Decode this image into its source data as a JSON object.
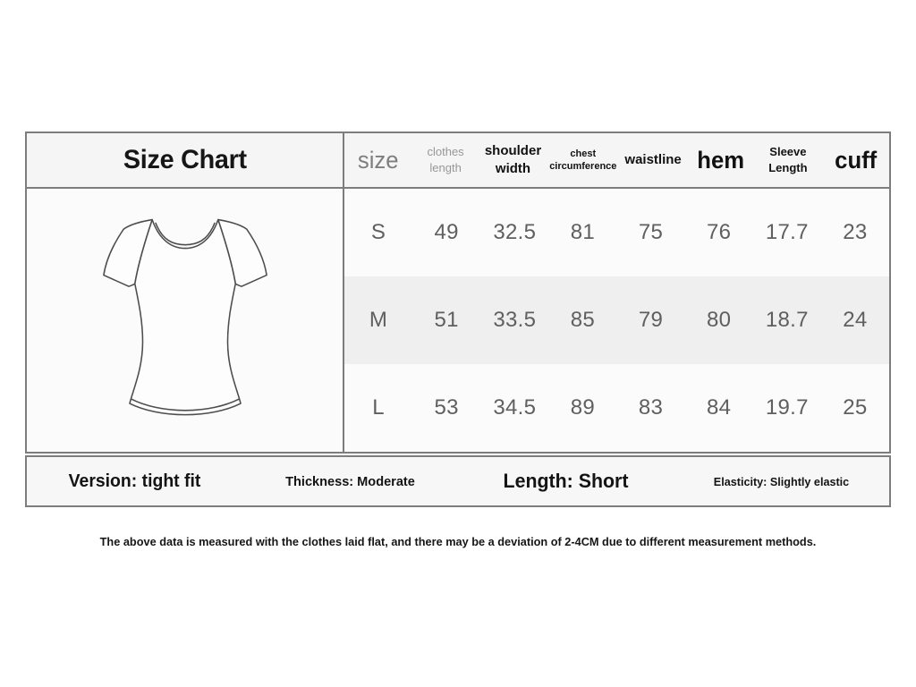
{
  "page": {
    "title": "Size Chart",
    "footnote": "The above data is measured with the clothes laid flat, and there may be a deviation of 2-4CM due to different measurement methods."
  },
  "size_table": {
    "columns": [
      {
        "label": "size"
      },
      {
        "label": "clothes length"
      },
      {
        "label": "shoulder width"
      },
      {
        "label": "chest circumference"
      },
      {
        "label": "waistline"
      },
      {
        "label": "hem"
      },
      {
        "label": "Sleeve Length"
      },
      {
        "label": "cuff"
      }
    ],
    "rows": [
      {
        "cells": [
          "S",
          "49",
          "32.5",
          "81",
          "75",
          "76",
          "17.7",
          "23"
        ]
      },
      {
        "cells": [
          "M",
          "51",
          "33.5",
          "85",
          "79",
          "80",
          "18.7",
          "24"
        ]
      },
      {
        "cells": [
          "L",
          "53",
          "34.5",
          "89",
          "83",
          "84",
          "19.7",
          "25"
        ]
      }
    ]
  },
  "attributes": [
    {
      "label": "Version: tight fit"
    },
    {
      "label": "Thickness: Moderate"
    },
    {
      "label": "Length: Short"
    },
    {
      "label": "Elasticity: Slightly elastic"
    }
  ],
  "illustration": {
    "name": "t-shirt line drawing, raglan short sleeves, fitted waist"
  },
  "colors": {
    "border": "#7d7d7d",
    "panel_bg": "#fbfbfb",
    "header_bg": "#f5f5f5",
    "alt_row_bg": "#efefef",
    "attr_bar_bg": "#f7f7f7",
    "data_text": "#5f5f5f"
  }
}
